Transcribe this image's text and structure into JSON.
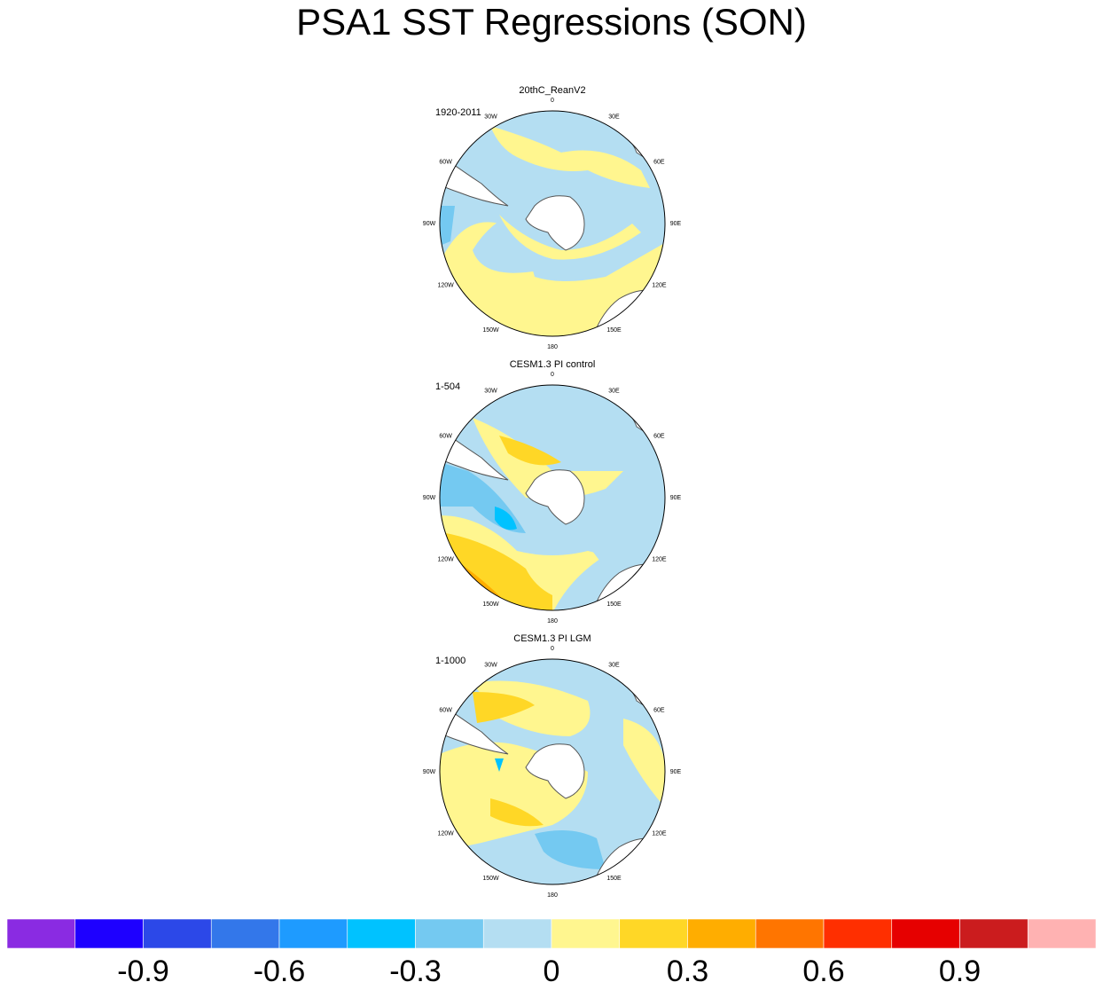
{
  "title": "PSA1 SST Regressions (SON)",
  "panels": [
    {
      "title": "20thC_ReanV2",
      "period": "1920-2011"
    },
    {
      "title": "CESM1.3 PI control",
      "period": "1-504"
    },
    {
      "title": "CESM1.3 PI LGM",
      "period": "1-1000"
    }
  ],
  "longitude_labels": [
    "0",
    "30E",
    "60E",
    "90E",
    "120E",
    "150E",
    "180",
    "150W",
    "120W",
    "90W",
    "60W",
    "30W"
  ],
  "colorbar": {
    "colors": [
      "#8a2be2",
      "#1e00ff",
      "#2c48e8",
      "#3377ea",
      "#1e9bff",
      "#00c2ff",
      "#74c9f1",
      "#b4def2",
      "#fff68f",
      "#ffd726",
      "#ffad00",
      "#ff7500",
      "#ff2f00",
      "#e60000",
      "#cb1c1e",
      "#ffb2b2"
    ],
    "lim": [
      -1.2,
      1.2
    ],
    "ticks": [
      -0.9,
      -0.6,
      -0.3,
      0,
      0.3,
      0.6,
      0.9
    ]
  }
}
